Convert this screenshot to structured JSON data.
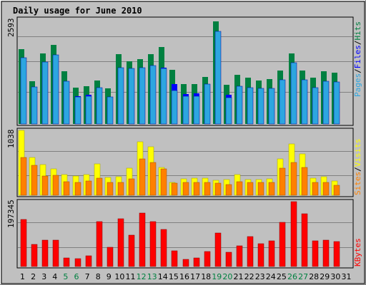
{
  "title": "Daily usage for June 2010",
  "colors": {
    "title": "#0000cc",
    "background": "#c0c0c0",
    "pages": "#2da6e0",
    "files": "#0000ff",
    "hits": "#008040",
    "sites": "#ff8000",
    "visits": "#ffff00",
    "kbytes": "#ff0000",
    "weekend": "#008040",
    "weekday": "#000000",
    "slash": "#000000"
  },
  "legend": {
    "top": {
      "pages": "Pages",
      "slash1": "/",
      "files": "Files",
      "slash2": "/",
      "hits": "Hits"
    },
    "middle": {
      "sites": "Sites",
      "slash1": "/",
      "visits": "Visits"
    },
    "bottom": {
      "kbytes": "KBytes"
    }
  },
  "chart_data": {
    "type": "bar",
    "categories": [
      "1",
      "2",
      "3",
      "4",
      "5",
      "6",
      "7",
      "8",
      "9",
      "10",
      "11",
      "12",
      "13",
      "14",
      "15",
      "16",
      "17",
      "18",
      "19",
      "20",
      "21",
      "22",
      "23",
      "24",
      "25",
      "26",
      "27",
      "28",
      "29",
      "30",
      "31"
    ],
    "weekend_days": [
      "5",
      "6",
      "12",
      "13",
      "19",
      "20",
      "26",
      "27"
    ],
    "panels": [
      {
        "ymax_label": "2593",
        "ylim": [
          0,
          2593
        ],
        "series": [
          {
            "name": "Hits",
            "values": [
              1860,
              1070,
              1760,
              1980,
              1320,
              910,
              950,
              1080,
              890,
              1740,
              1570,
              1620,
              1740,
              1920,
              1350,
              1000,
              1000,
              1180,
              2550,
              970,
              1230,
              1160,
              1090,
              1120,
              1340,
              1760,
              1330,
              1160,
              1320,
              1280,
              0
            ]
          },
          {
            "name": "Files",
            "values": [
              1370,
              850,
              1320,
              1480,
              990,
              690,
              720,
              800,
              670,
              1260,
              1200,
              1210,
              1280,
              1400,
              1000,
              750,
              760,
              870,
              1860,
              720,
              920,
              880,
              820,
              840,
              1000,
              1300,
              980,
              860,
              980,
              950,
              0
            ]
          },
          {
            "name": "Pages",
            "values": [
              1650,
              920,
              1550,
              1720,
              1060,
              680,
              700,
              910,
              670,
              1400,
              1390,
              1400,
              1450,
              1390,
              840,
              690,
              700,
              990,
              2310,
              650,
              950,
              910,
              890,
              880,
              1100,
              1530,
              1100,
              910,
              1060,
              1040,
              0
            ]
          }
        ]
      },
      {
        "ymax_label": "1038",
        "ylim": [
          0,
          1038
        ],
        "series": [
          {
            "name": "Visits",
            "values": [
              1038,
              610,
              490,
              420,
              330,
              310,
              330,
              500,
              280,
              300,
              430,
              860,
              780,
              440,
              210,
              260,
              270,
              270,
              240,
              250,
              330,
              250,
              250,
              260,
              580,
              820,
              660,
              270,
              300,
              230,
              0
            ]
          },
          {
            "name": "Sites",
            "values": [
              610,
              480,
              310,
              320,
              220,
              210,
              230,
              270,
              210,
              210,
              260,
              580,
              530,
              420,
              190,
              200,
              210,
              210,
              190,
              170,
              220,
              200,
              200,
              200,
              430,
              530,
              440,
              200,
              210,
              160,
              0
            ]
          }
        ]
      },
      {
        "ymax_label": "197345",
        "ylim": [
          0,
          197345
        ],
        "series": [
          {
            "name": "KBytes",
            "values": [
              144000,
              68000,
              80000,
              80000,
              26000,
              24000,
              32000,
              136000,
              59000,
              145000,
              95000,
              163000,
              136000,
              113000,
              47000,
              21000,
              27000,
              46000,
              101000,
              43000,
              62000,
              90000,
              70000,
              79000,
              134000,
              197345,
              161000,
              79000,
              81000,
              75000,
              0
            ]
          }
        ]
      }
    ]
  }
}
